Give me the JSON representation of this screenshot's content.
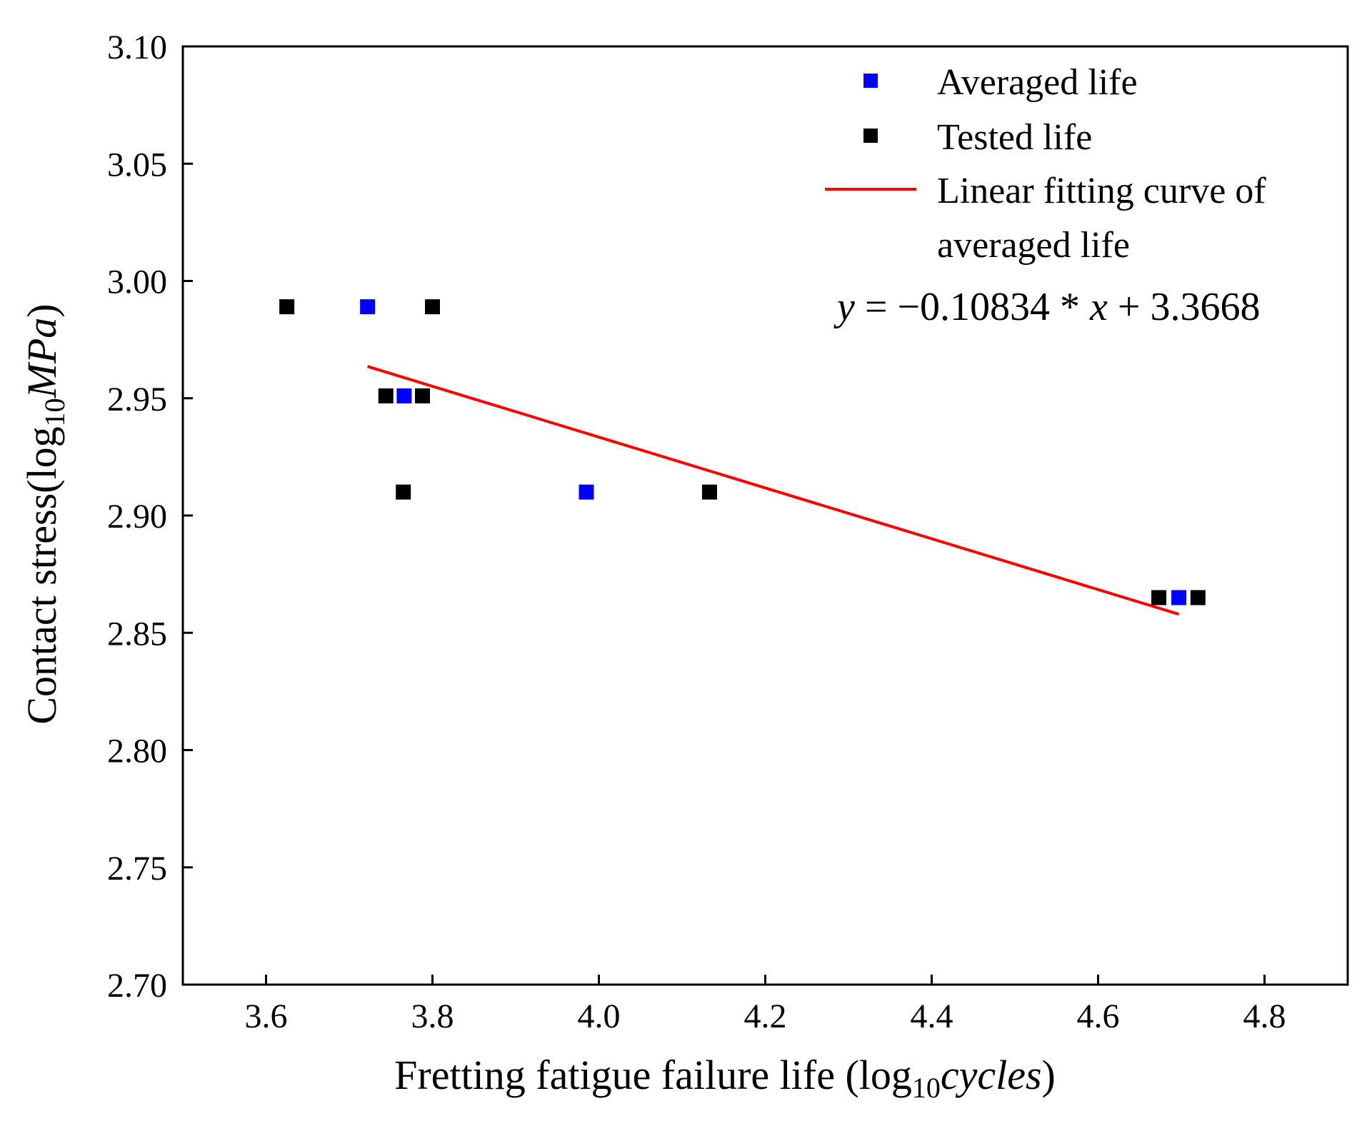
{
  "chart_data": {
    "type": "scatter",
    "title": "",
    "xlabel_main": "Fretting fatigue failure life (log",
    "xlabel_sub": "10",
    "xlabel_italic": "cycles",
    "xlabel_close": ")",
    "ylabel_main": "Contact stress(log",
    "ylabel_sub": "10",
    "ylabel_italic": "MPa",
    "ylabel_close": ")",
    "xlim": [
      3.5,
      4.9
    ],
    "ylim": [
      2.7,
      3.1
    ],
    "xticks": [
      3.6,
      3.8,
      4.0,
      4.2,
      4.4,
      4.6,
      4.8
    ],
    "xtick_labels": [
      "3.6",
      "3.8",
      "4.0",
      "4.2",
      "4.4",
      "4.6",
      "4.8"
    ],
    "yticks": [
      2.7,
      2.75,
      2.8,
      2.85,
      2.9,
      2.95,
      3.0,
      3.05,
      3.1
    ],
    "ytick_labels": [
      "2.70",
      "2.75",
      "2.80",
      "2.85",
      "2.90",
      "2.95",
      "3.00",
      "3.05",
      "3.10"
    ],
    "series": [
      {
        "name": "Averaged life",
        "marker": "square",
        "color": "#0000ff",
        "points": [
          {
            "x": 3.722,
            "y": 2.989
          },
          {
            "x": 3.766,
            "y": 2.951
          },
          {
            "x": 3.985,
            "y": 2.91
          },
          {
            "x": 4.697,
            "y": 2.865
          }
        ]
      },
      {
        "name": "Tested life",
        "marker": "square",
        "color": "#000000",
        "points": [
          {
            "x": 3.625,
            "y": 2.989
          },
          {
            "x": 3.8,
            "y": 2.989
          },
          {
            "x": 3.744,
            "y": 2.951
          },
          {
            "x": 3.788,
            "y": 2.951
          },
          {
            "x": 3.765,
            "y": 2.91
          },
          {
            "x": 4.133,
            "y": 2.91
          },
          {
            "x": 4.673,
            "y": 2.865
          },
          {
            "x": 4.72,
            "y": 2.865
          }
        ]
      }
    ],
    "fit": {
      "name_line1": "Linear fitting curve of",
      "name_line2": "averaged life",
      "color": "#ff0000",
      "slope": -0.10834,
      "intercept": 3.3668,
      "x_range": [
        3.722,
        4.697
      ],
      "equation_y": "y",
      "equation_mid": " = −0.10834 * ",
      "equation_x": "x",
      "equation_end": " + 3.3668"
    },
    "legend_position": "top-right",
    "grid": false
  }
}
